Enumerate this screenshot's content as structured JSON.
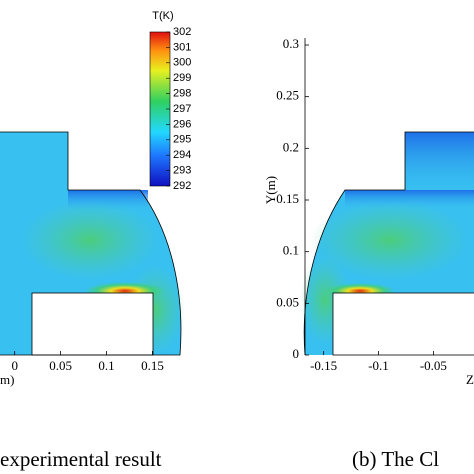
{
  "chart_data": [
    {
      "type": "contour",
      "caption": "experimental result",
      "xlabel": "m)",
      "xlim": [
        -0.016,
        0.18
      ],
      "xticks": [
        0,
        0.05,
        0.1,
        0.15
      ],
      "colorbar": {
        "title": "T(K)",
        "lim": [
          292,
          302
        ],
        "ticks": [
          292,
          293,
          294,
          295,
          296,
          297,
          298,
          299,
          300,
          301,
          302
        ]
      }
    },
    {
      "type": "contour",
      "caption": "(b) The Cl",
      "xlabel": "Z",
      "ylabel": "Y(m)",
      "xlim": [
        -0.167,
        -0.013
      ],
      "xticks": [
        -0.15,
        -0.1,
        -0.05
      ],
      "ylim": [
        0,
        0.3
      ],
      "yticks": [
        0,
        0.05,
        0.1,
        0.15,
        0.2,
        0.25,
        0.3
      ]
    }
  ]
}
